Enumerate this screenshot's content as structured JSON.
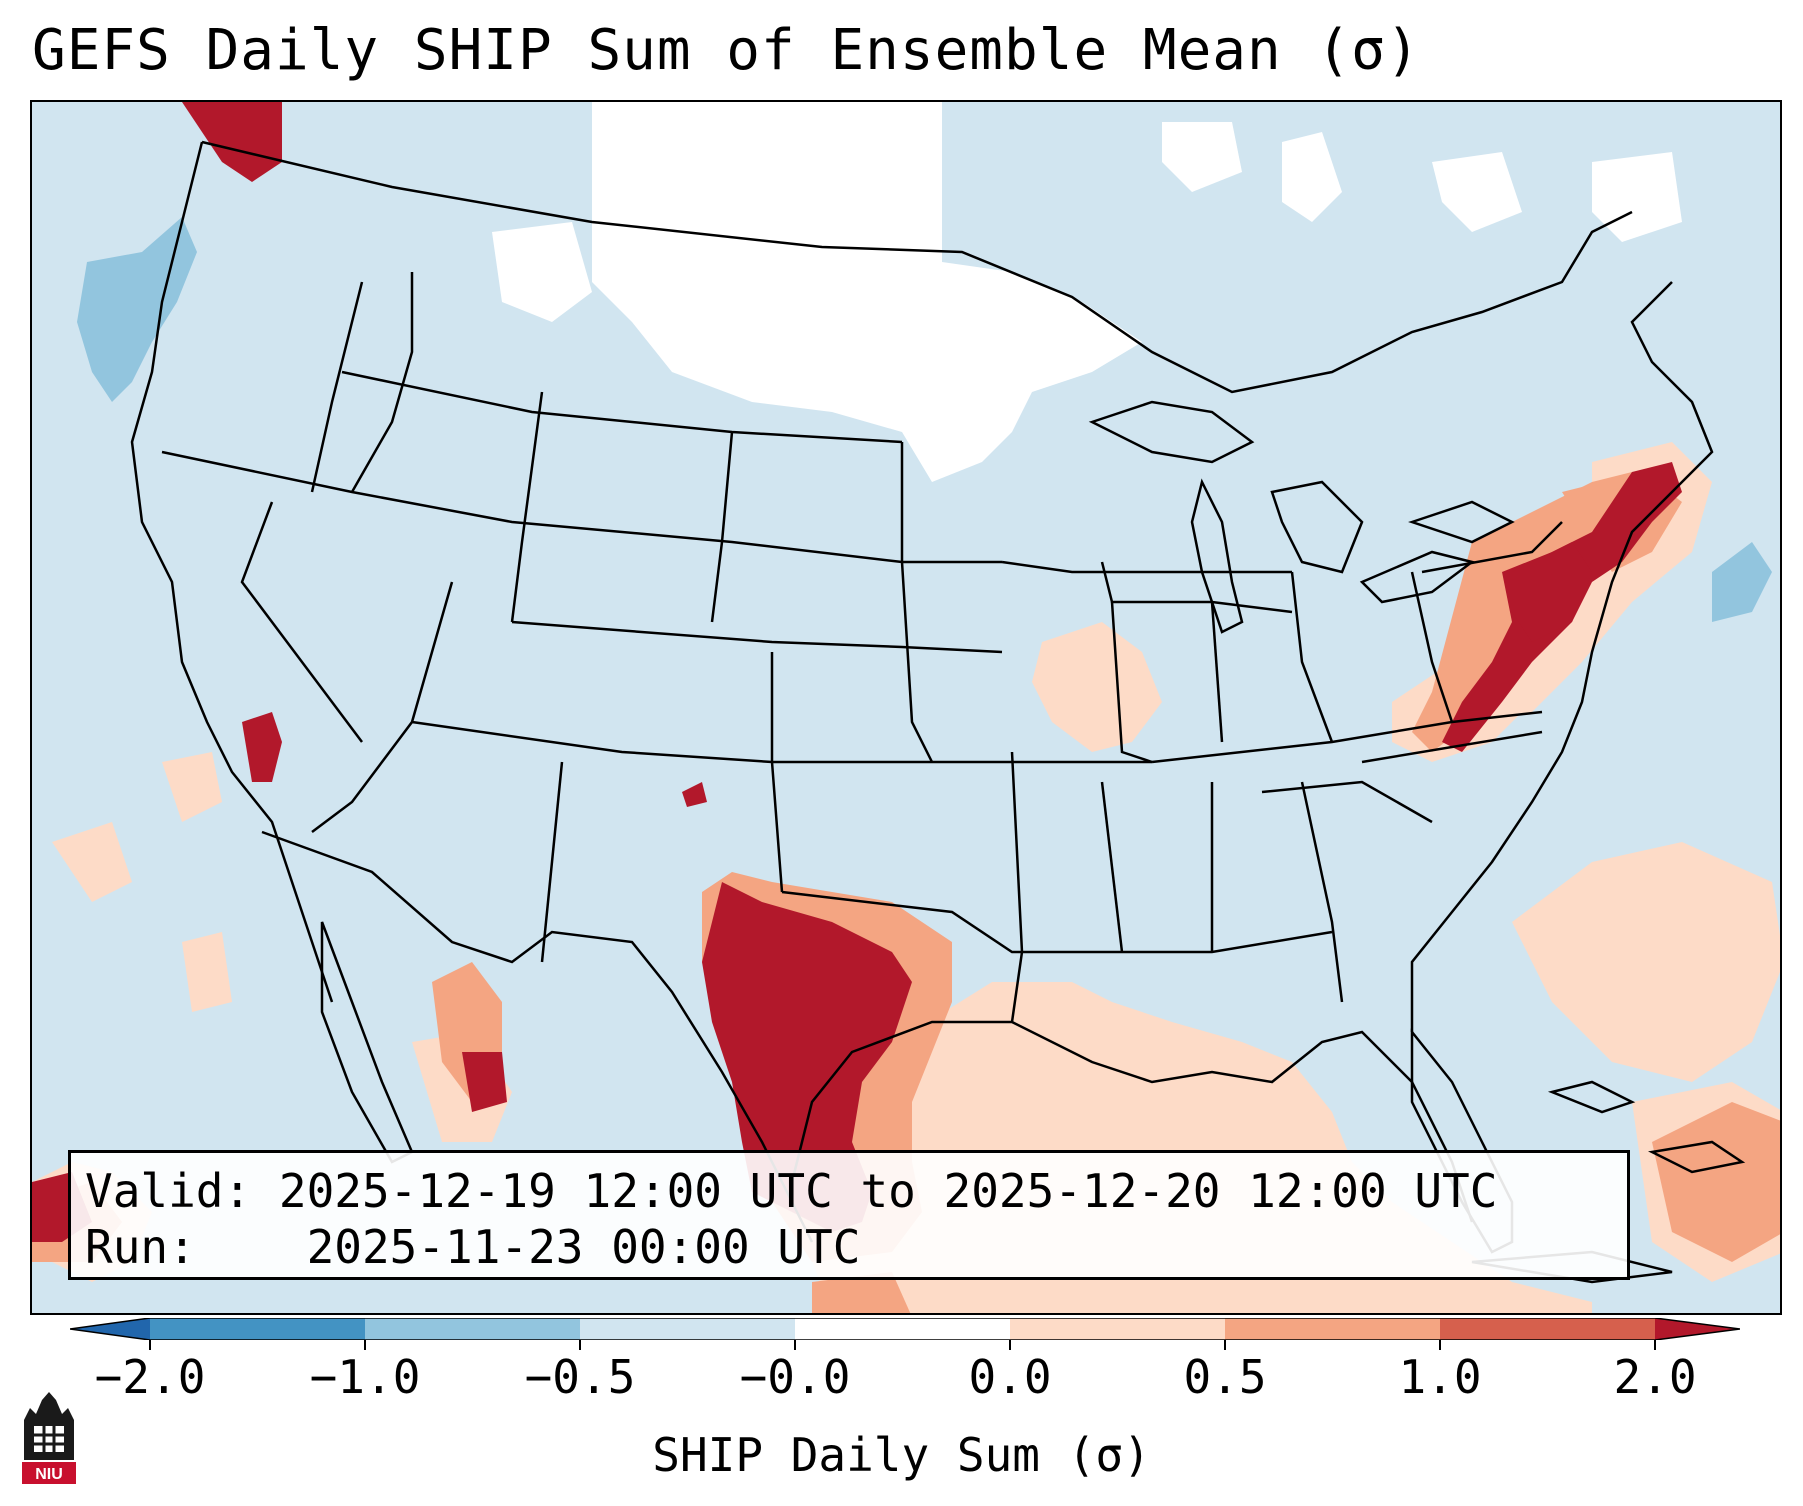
{
  "title": "GEFS Daily SHIP Sum of Ensemble Mean (σ)",
  "info": {
    "valid_label": "Valid:",
    "valid_value": "2025-12-19 12:00 UTC to 2025-12-20 12:00 UTC",
    "run_label": "Run:",
    "run_value": "2025-11-23 00:00 UTC"
  },
  "colorbar": {
    "label": "SHIP Daily Sum (σ)",
    "ticks": [
      "−2.0",
      "−1.0",
      "−0.5",
      "−0.0",
      "0.0",
      "0.5",
      "1.0",
      "2.0"
    ],
    "colors": {
      "under": "#2166ac",
      "neg_2_to_1": "#4393c3",
      "neg_1_to_05": "#92c5de",
      "neg_05_to_0": "#d1e5f0",
      "zero": "#ffffff",
      "pos_0_to_05": "#fddbc7",
      "pos_05_to_1": "#f4a582",
      "pos_1_to_2": "#d6604d",
      "over": "#b2182b"
    }
  },
  "logo": {
    "text": "NIU"
  }
}
